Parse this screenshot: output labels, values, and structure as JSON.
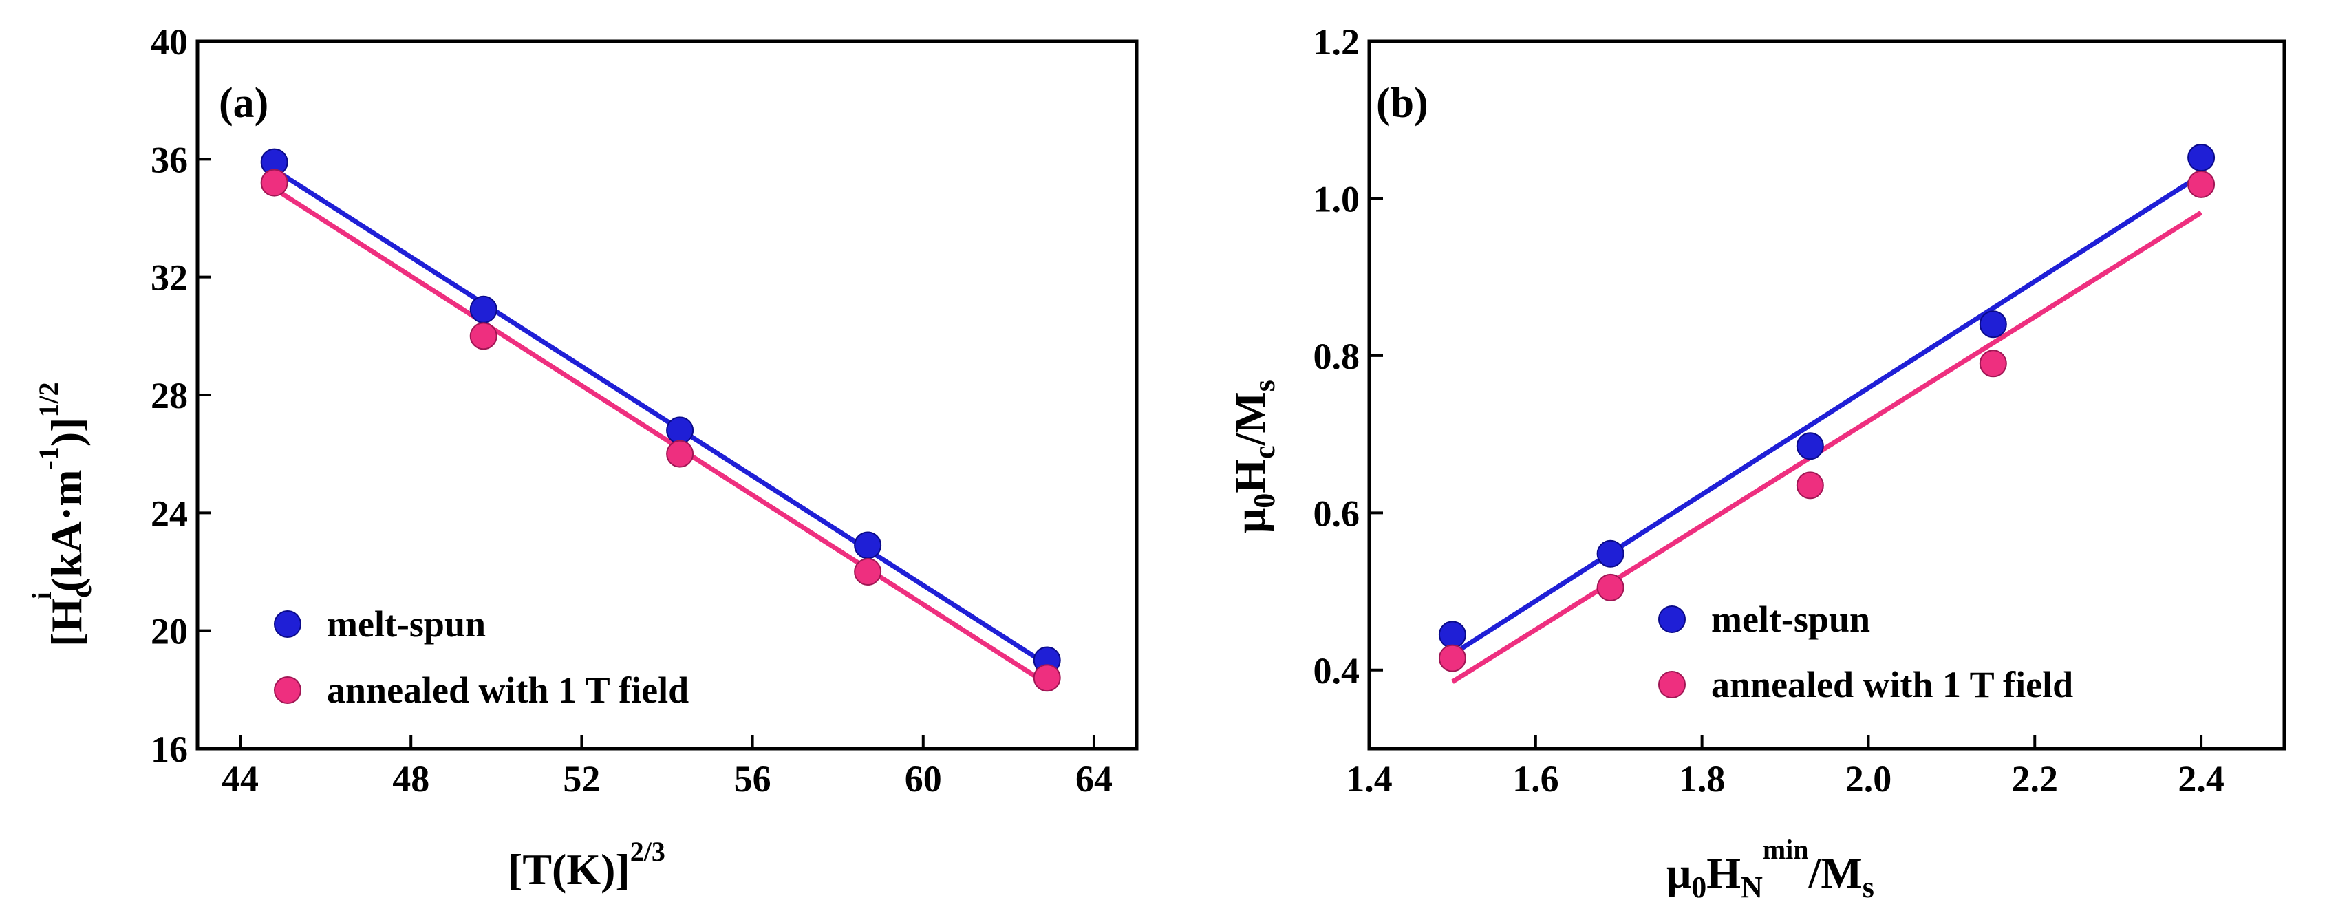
{
  "chart_data": [
    {
      "type": "scatter",
      "panel_label": "(a)",
      "xlabel": {
        "main": "[T(K)]",
        "sup": "2/3"
      },
      "ylabel": {
        "p1": "[H",
        "sub1": "c",
        "sup1": "i",
        "p2": "(kA·m",
        "sup2": "-1",
        "p3": ")]",
        "sup3": "1/2"
      },
      "xlim": [
        43,
        65
      ],
      "ylim": [
        16,
        40
      ],
      "xticks": [
        44,
        48,
        52,
        56,
        60,
        64
      ],
      "yticks": [
        16,
        20,
        24,
        28,
        32,
        36,
        40
      ],
      "grid": false,
      "legend_position": "bottom-left",
      "series": [
        {
          "name": "melt-spun",
          "color": "#1f1fd6",
          "x": [
            44.8,
            49.7,
            54.3,
            58.7,
            62.9
          ],
          "y": [
            35.9,
            30.9,
            26.8,
            22.9,
            19.0
          ],
          "fit": [
            [
              44.8,
              35.65
            ],
            [
              62.9,
              18.85
            ]
          ]
        },
        {
          "name": "annealed with 1 T field",
          "color": "#ee2f7f",
          "x": [
            44.8,
            49.7,
            54.3,
            58.7,
            62.9
          ],
          "y": [
            35.2,
            30.0,
            26.0,
            22.0,
            18.4
          ],
          "fit": [
            [
              44.8,
              35.0
            ],
            [
              62.9,
              18.2
            ]
          ]
        }
      ]
    },
    {
      "type": "scatter",
      "panel_label": "(b)",
      "xlabel": {
        "p1": "μ",
        "sub1": "0",
        "p2": "H",
        "sub2": "N",
        "sup2": "min",
        "p3": "/M",
        "sub3": "s"
      },
      "ylabel": {
        "p1": "μ",
        "sub1": "0",
        "p2": "H",
        "sub2": "c",
        "p3": "/M",
        "sub3": "s"
      },
      "xlim": [
        1.4,
        2.5
      ],
      "ylim": [
        0.3,
        1.2
      ],
      "xticks": [
        "1.4",
        "1.6",
        "1.8",
        "2.0",
        "2.2",
        "2.4"
      ],
      "yticks": [
        "0.4",
        "0.6",
        "0.8",
        "1.0",
        "1.2"
      ],
      "grid": false,
      "legend_position": "bottom-right",
      "series": [
        {
          "name": "melt-spun",
          "color": "#1f1fd6",
          "x": [
            1.5,
            1.69,
            1.93,
            2.15,
            2.4
          ],
          "y": [
            0.445,
            0.548,
            0.685,
            0.84,
            1.052
          ],
          "fit": [
            [
              1.5,
              0.42
            ],
            [
              2.4,
              1.03
            ]
          ]
        },
        {
          "name": "annealed with 1 T field",
          "color": "#ee2f7f",
          "x": [
            1.5,
            1.69,
            1.93,
            2.15,
            2.4
          ],
          "y": [
            0.415,
            0.505,
            0.635,
            0.79,
            1.018
          ],
          "fit": [
            [
              1.5,
              0.385
            ],
            [
              2.4,
              0.982
            ]
          ]
        }
      ]
    }
  ]
}
